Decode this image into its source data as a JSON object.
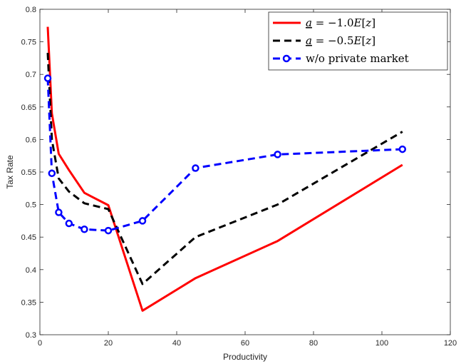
{
  "chart_data": {
    "type": "line",
    "title": "",
    "xlabel": "Productivity",
    "ylabel": "Tax Rate",
    "xlim": [
      0,
      120
    ],
    "ylim": [
      0.3,
      0.8
    ],
    "xticks": [
      0,
      20,
      40,
      60,
      80,
      100,
      120
    ],
    "yticks": [
      0.3,
      0.35,
      0.4,
      0.45,
      0.5,
      0.55,
      0.6,
      0.65,
      0.7,
      0.75,
      0.8
    ],
    "xtick_labels": [
      "0",
      "20",
      "40",
      "60",
      "80",
      "100",
      "120"
    ],
    "ytick_labels": [
      "0.3",
      "0.35",
      "0.4",
      "0.45",
      "0.5",
      "0.55",
      "0.6",
      "0.65",
      "0.7",
      "0.75",
      "0.8"
    ],
    "grid": false,
    "legend_position": "top-right",
    "series": [
      {
        "name": "a = −1.0E[z]",
        "legend_parts": [
          "a",
          " = −1.0",
          "E",
          "[",
          "z",
          "]"
        ],
        "color": "#ff0000",
        "style": "solid",
        "marker": "none",
        "x": [
          2.3,
          3.5,
          5.5,
          8.5,
          13,
          20,
          30,
          45.5,
          69.5,
          106
        ],
        "y": [
          0.773,
          0.64,
          0.578,
          0.553,
          0.518,
          0.499,
          0.337,
          0.387,
          0.444,
          0.561
        ]
      },
      {
        "name": "a = −0.5E[z]",
        "legend_parts": [
          "a",
          " = −0.5",
          "E",
          "[",
          "z",
          "]"
        ],
        "color": "#000000",
        "style": "dashed",
        "marker": "none",
        "x": [
          2.3,
          3.5,
          5.5,
          8.5,
          13,
          20,
          30,
          45.5,
          69.5,
          106
        ],
        "y": [
          0.733,
          0.6,
          0.54,
          0.52,
          0.502,
          0.493,
          0.378,
          0.45,
          0.5,
          0.612
        ]
      },
      {
        "name": "w/o private market",
        "legend_parts": [
          "w/o private market"
        ],
        "color": "#0000ff",
        "style": "dashed",
        "marker": "circle",
        "x": [
          2.3,
          3.5,
          5.5,
          8.5,
          13,
          20,
          30,
          45.5,
          69.5,
          106
        ],
        "y": [
          0.694,
          0.548,
          0.488,
          0.471,
          0.462,
          0.46,
          0.475,
          0.556,
          0.577,
          0.585
        ]
      }
    ]
  }
}
